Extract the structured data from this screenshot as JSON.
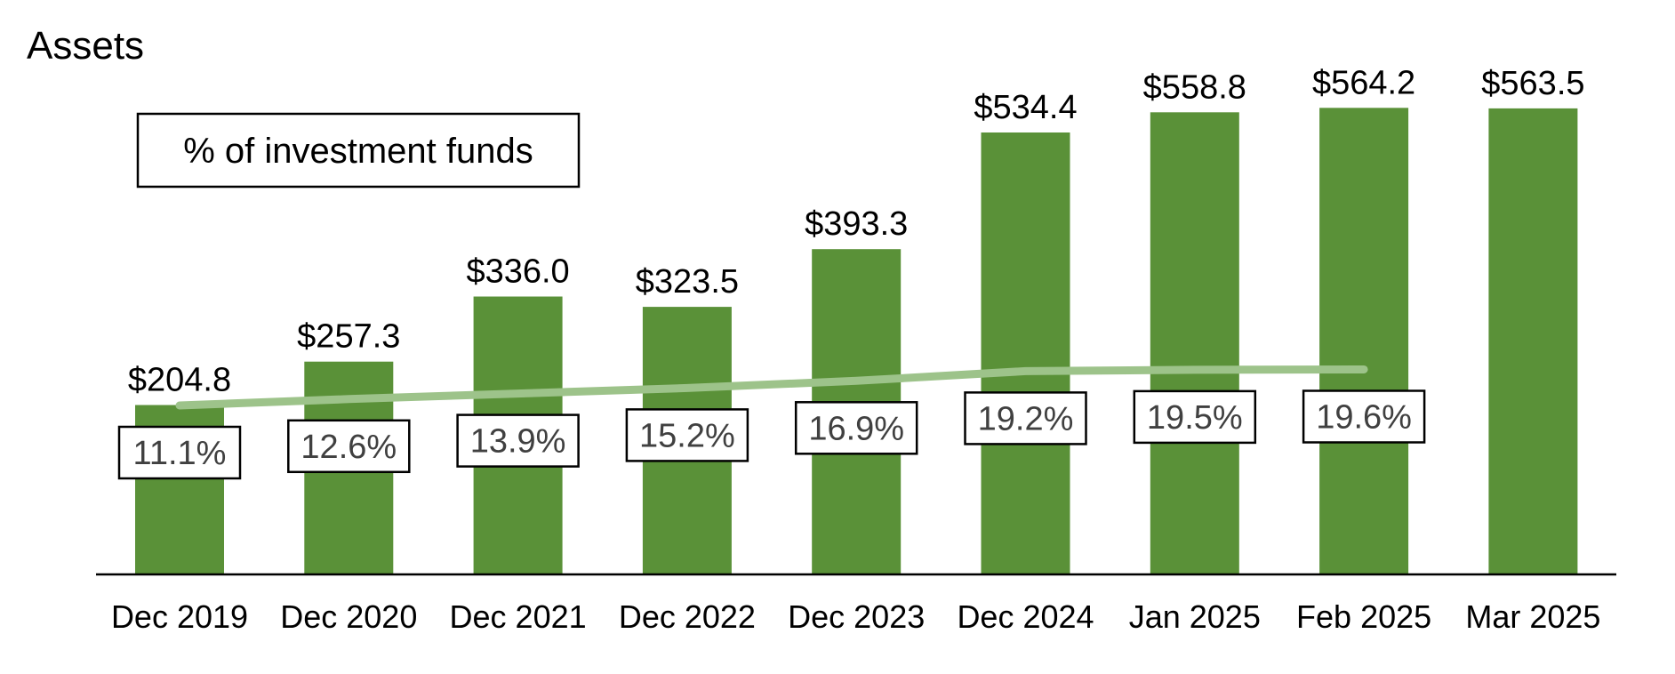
{
  "chart_data": {
    "type": "bar",
    "title": "Assets",
    "legend_label": "% of investment funds",
    "legend_position": "top-left",
    "grid": false,
    "categories": [
      "Dec 2019",
      "Dec 2020",
      "Dec 2021",
      "Dec 2022",
      "Dec 2023",
      "Dec 2024",
      "Jan 2025",
      "Feb 2025",
      "Mar 2025"
    ],
    "series": [
      {
        "kind": "bar",
        "value_labels": [
          "$204.8",
          "$257.3",
          "$336.0",
          "$323.5",
          "$393.3",
          "$534.4",
          "$558.8",
          "$564.2",
          "$563.5"
        ],
        "values": [
          204.8,
          257.3,
          336.0,
          323.5,
          393.3,
          534.4,
          558.8,
          564.2,
          563.5
        ],
        "color": "#5a9138"
      },
      {
        "name": "% of investment funds",
        "kind": "line",
        "value_labels": [
          "11.1%",
          "12.6%",
          "13.9%",
          "15.2%",
          "16.9%",
          "19.2%",
          "19.5%",
          "19.6%",
          null
        ],
        "values": [
          11.1,
          12.6,
          13.9,
          15.2,
          16.9,
          19.2,
          19.5,
          19.6,
          null
        ],
        "color": "#9dc38a"
      }
    ],
    "ylim": [
      0,
      600
    ]
  }
}
